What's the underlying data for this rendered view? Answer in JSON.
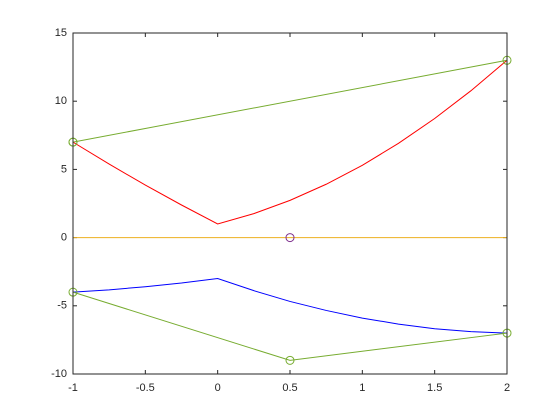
{
  "chart_data": {
    "type": "line",
    "xlim": [
      -1,
      2
    ],
    "ylim": [
      -10,
      15
    ],
    "xticks": [
      -1,
      -0.5,
      0,
      0.5,
      1,
      1.5,
      2
    ],
    "yticks": [
      -10,
      -5,
      0,
      5,
      10,
      15
    ],
    "grid": false,
    "box": true,
    "series": [
      {
        "color": "#ff0000",
        "line": true,
        "marker": null,
        "x": [
          -1,
          -0.75,
          -0.5,
          -0.25,
          0,
          0.25,
          0.5,
          0.75,
          1,
          1.25,
          1.5,
          1.75,
          2
        ],
        "y": [
          7,
          5.39,
          3.85,
          2.39,
          1,
          1.76,
          2.73,
          3.91,
          5.3,
          6.91,
          8.73,
          10.76,
          13
        ]
      },
      {
        "color": "#0000ff",
        "line": true,
        "marker": null,
        "x": [
          -1,
          -0.75,
          -0.5,
          -0.25,
          0,
          0.25,
          0.5,
          0.75,
          1,
          1.25,
          1.5,
          1.75,
          2
        ],
        "y": [
          -4,
          -3.83,
          -3.6,
          -3.33,
          -3,
          -3.89,
          -4.68,
          -5.34,
          -5.9,
          -6.34,
          -6.68,
          -6.89,
          -7
        ]
      },
      {
        "color": "#edb120",
        "line": true,
        "marker": null,
        "x": [
          -1,
          2
        ],
        "y": [
          0,
          0
        ]
      },
      {
        "color": "#77ac30",
        "line": true,
        "marker": "o",
        "x": [
          -1,
          2,
          2,
          0.5,
          -1,
          -1
        ],
        "y": [
          7,
          13,
          -7,
          -9,
          -4,
          7
        ]
      },
      {
        "color": "#7e2f8e",
        "line": false,
        "marker": "o",
        "x": [
          0.5
        ],
        "y": [
          0
        ]
      }
    ]
  }
}
